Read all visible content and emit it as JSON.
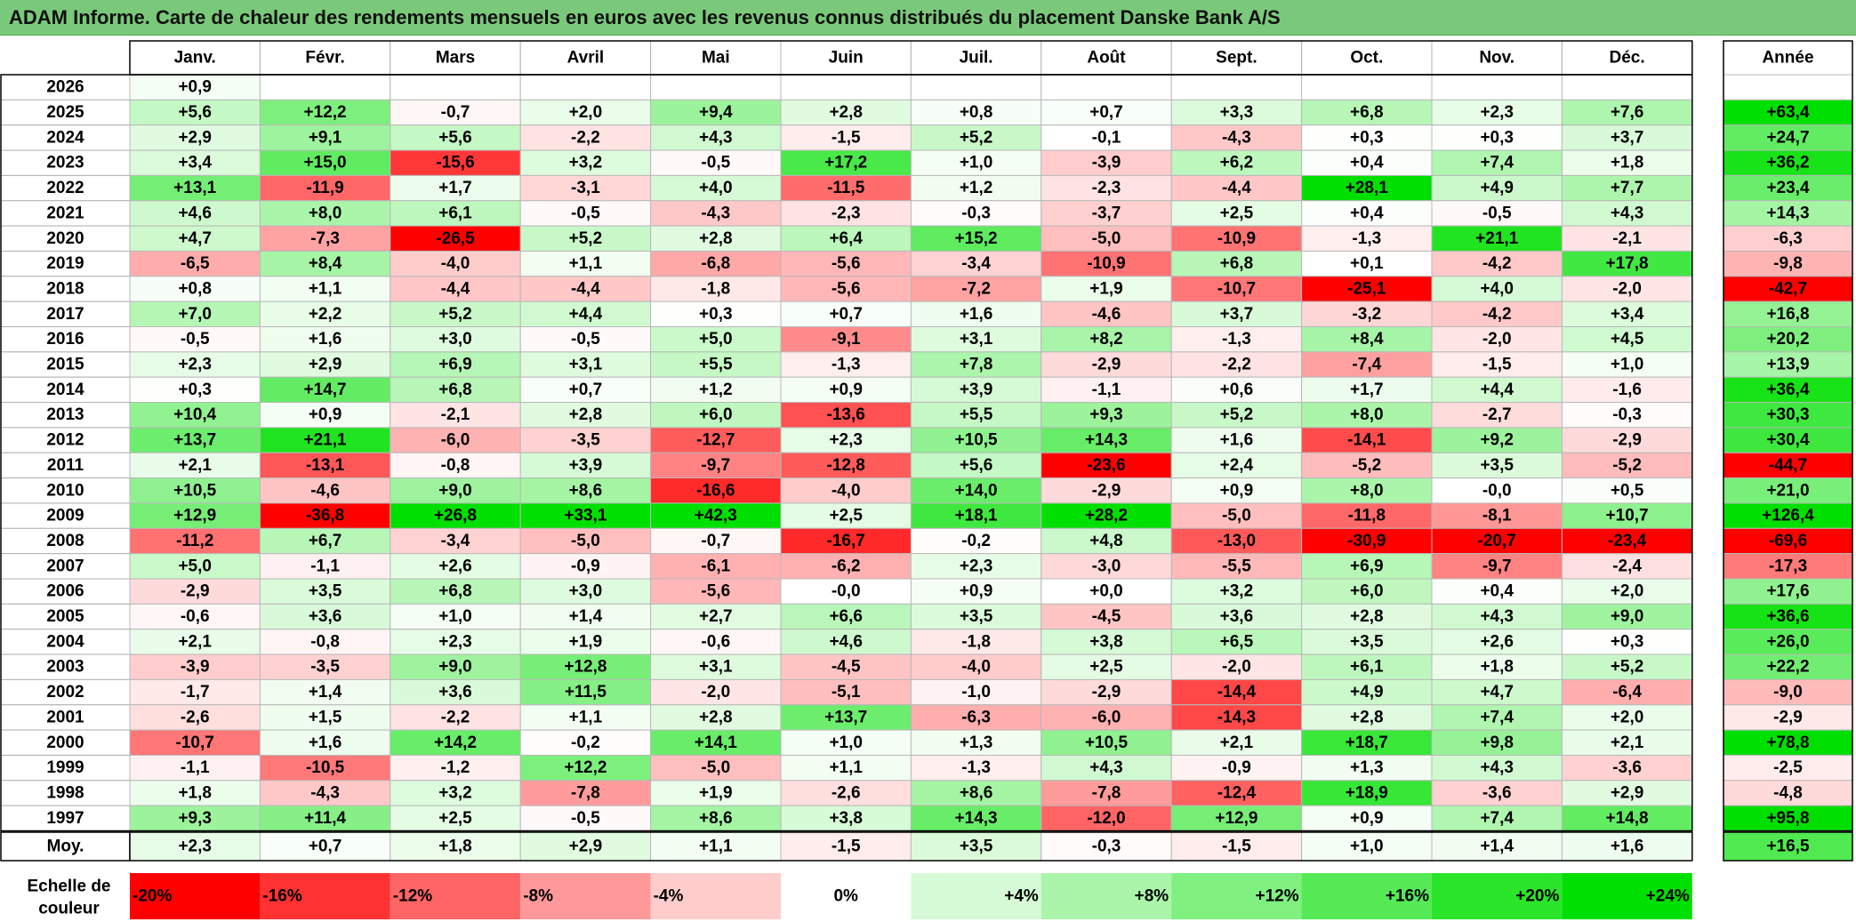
{
  "title": "ADAM Informe. Carte de chaleur des rendements mensuels en euros avec les revenus connus distribués du placement Danske Bank A/S",
  "chart_data": {
    "type": "heatmap",
    "title": "ADAM Informe. Carte de chaleur des rendements mensuels en euros avec les revenus connus distribués du placement Danske Bank A/S",
    "columns": [
      "Janv.",
      "Févr.",
      "Mars",
      "Avril",
      "Mai",
      "Juin",
      "Juil.",
      "Août",
      "Sept.",
      "Oct.",
      "Nov.",
      "Déc."
    ],
    "year_column_label": "Année",
    "rows": [
      {
        "label": "2026",
        "values": [
          "+0,9",
          "",
          "",
          "",
          "",
          "",
          "",
          "",
          "",
          "",
          "",
          ""
        ],
        "annual": ""
      },
      {
        "label": "2025",
        "values": [
          "+5,6",
          "+12,2",
          "-0,7",
          "+2,0",
          "+9,4",
          "+2,8",
          "+0,8",
          "+0,7",
          "+3,3",
          "+6,8",
          "+2,3",
          "+7,6"
        ],
        "annual": "+63,4"
      },
      {
        "label": "2024",
        "values": [
          "+2,9",
          "+9,1",
          "+5,6",
          "-2,2",
          "+4,3",
          "-1,5",
          "+5,2",
          "-0,1",
          "-4,3",
          "+0,3",
          "+0,3",
          "+3,7"
        ],
        "annual": "+24,7"
      },
      {
        "label": "2023",
        "values": [
          "+3,4",
          "+15,0",
          "-15,6",
          "+3,2",
          "-0,5",
          "+17,2",
          "+1,0",
          "-3,9",
          "+6,2",
          "+0,4",
          "+7,4",
          "+1,8"
        ],
        "annual": "+36,2"
      },
      {
        "label": "2022",
        "values": [
          "+13,1",
          "-11,9",
          "+1,7",
          "-3,1",
          "+4,0",
          "-11,5",
          "+1,2",
          "-2,3",
          "-4,4",
          "+28,1",
          "+4,9",
          "+7,7"
        ],
        "annual": "+23,4"
      },
      {
        "label": "2021",
        "values": [
          "+4,6",
          "+8,0",
          "+6,1",
          "-0,5",
          "-4,3",
          "-2,3",
          "-0,3",
          "-3,7",
          "+2,5",
          "+0,4",
          "-0,5",
          "+4,3"
        ],
        "annual": "+14,3"
      },
      {
        "label": "2020",
        "values": [
          "+4,7",
          "-7,3",
          "-26,5",
          "+5,2",
          "+2,8",
          "+6,4",
          "+15,2",
          "-5,0",
          "-10,9",
          "-1,3",
          "+21,1",
          "-2,1"
        ],
        "annual": "-6,3"
      },
      {
        "label": "2019",
        "values": [
          "-6,5",
          "+8,4",
          "-4,0",
          "+1,1",
          "-6,8",
          "-5,6",
          "-3,4",
          "-10,9",
          "+6,8",
          "+0,1",
          "-4,2",
          "+17,8"
        ],
        "annual": "-9,8"
      },
      {
        "label": "2018",
        "values": [
          "+0,8",
          "+1,1",
          "-4,4",
          "-4,4",
          "-1,8",
          "-5,6",
          "-7,2",
          "+1,9",
          "-10,7",
          "-25,1",
          "+4,0",
          "-2,0"
        ],
        "annual": "-42,7"
      },
      {
        "label": "2017",
        "values": [
          "+7,0",
          "+2,2",
          "+5,2",
          "+4,4",
          "+0,3",
          "+0,7",
          "+1,6",
          "-4,6",
          "+3,7",
          "-3,2",
          "-4,2",
          "+3,4"
        ],
        "annual": "+16,8"
      },
      {
        "label": "2016",
        "values": [
          "-0,5",
          "+1,6",
          "+3,0",
          "-0,5",
          "+5,0",
          "-9,1",
          "+3,1",
          "+8,2",
          "-1,3",
          "+8,4",
          "-2,0",
          "+4,5"
        ],
        "annual": "+20,2"
      },
      {
        "label": "2015",
        "values": [
          "+2,3",
          "+2,9",
          "+6,9",
          "+3,1",
          "+5,5",
          "-1,3",
          "+7,8",
          "-2,9",
          "-2,2",
          "-7,4",
          "-1,5",
          "+1,0"
        ],
        "annual": "+13,9"
      },
      {
        "label": "2014",
        "values": [
          "+0,3",
          "+14,7",
          "+6,8",
          "+0,7",
          "+1,2",
          "+0,9",
          "+3,9",
          "-1,1",
          "+0,6",
          "+1,7",
          "+4,4",
          "-1,6"
        ],
        "annual": "+36,4"
      },
      {
        "label": "2013",
        "values": [
          "+10,4",
          "+0,9",
          "-2,1",
          "+2,8",
          "+6,0",
          "-13,6",
          "+5,5",
          "+9,3",
          "+5,2",
          "+8,0",
          "-2,7",
          "-0,3"
        ],
        "annual": "+30,3"
      },
      {
        "label": "2012",
        "values": [
          "+13,7",
          "+21,1",
          "-6,0",
          "-3,5",
          "-12,7",
          "+2,3",
          "+10,5",
          "+14,3",
          "+1,6",
          "-14,1",
          "+9,2",
          "-2,9"
        ],
        "annual": "+30,4"
      },
      {
        "label": "2011",
        "values": [
          "+2,1",
          "-13,1",
          "-0,8",
          "+3,9",
          "-9,7",
          "-12,8",
          "+5,6",
          "-23,6",
          "+2,4",
          "-5,2",
          "+3,5",
          "-5,2"
        ],
        "annual": "-44,7"
      },
      {
        "label": "2010",
        "values": [
          "+10,5",
          "-4,6",
          "+9,0",
          "+8,6",
          "-16,6",
          "-4,0",
          "+14,0",
          "-2,9",
          "+0,9",
          "+8,0",
          "-0,0",
          "+0,5"
        ],
        "annual": "+21,0"
      },
      {
        "label": "2009",
        "values": [
          "+12,9",
          "-36,8",
          "+26,8",
          "+33,1",
          "+42,3",
          "+2,5",
          "+18,1",
          "+28,2",
          "-5,0",
          "-11,8",
          "-8,1",
          "+10,7"
        ],
        "annual": "+126,4"
      },
      {
        "label": "2008",
        "values": [
          "-11,2",
          "+6,7",
          "-3,4",
          "-5,0",
          "-0,7",
          "-16,7",
          "-0,2",
          "+4,8",
          "-13,0",
          "-30,9",
          "-20,7",
          "-23,4"
        ],
        "annual": "-69,6"
      },
      {
        "label": "2007",
        "values": [
          "+5,0",
          "-1,1",
          "+2,6",
          "-0,9",
          "-6,1",
          "-6,2",
          "+2,3",
          "-3,0",
          "-5,5",
          "+6,9",
          "-9,7",
          "-2,4"
        ],
        "annual": "-17,3"
      },
      {
        "label": "2006",
        "values": [
          "-2,9",
          "+3,5",
          "+6,8",
          "+3,0",
          "-5,6",
          "-0,0",
          "+0,9",
          "+0,0",
          "+3,2",
          "+6,0",
          "+0,4",
          "+2,0"
        ],
        "annual": "+17,6"
      },
      {
        "label": "2005",
        "values": [
          "-0,6",
          "+3,6",
          "+1,0",
          "+1,4",
          "+2,7",
          "+6,6",
          "+3,5",
          "-4,5",
          "+3,6",
          "+2,8",
          "+4,3",
          "+9,0"
        ],
        "annual": "+36,6"
      },
      {
        "label": "2004",
        "values": [
          "+2,1",
          "-0,8",
          "+2,3",
          "+1,9",
          "-0,6",
          "+4,6",
          "-1,8",
          "+3,8",
          "+6,5",
          "+3,5",
          "+2,6",
          "+0,3"
        ],
        "annual": "+26,0"
      },
      {
        "label": "2003",
        "values": [
          "-3,9",
          "-3,5",
          "+9,0",
          "+12,8",
          "+3,1",
          "-4,5",
          "-4,0",
          "+2,5",
          "-2,0",
          "+6,1",
          "+1,8",
          "+5,2"
        ],
        "annual": "+22,2"
      },
      {
        "label": "2002",
        "values": [
          "-1,7",
          "+1,4",
          "+3,6",
          "+11,5",
          "-2,0",
          "-5,1",
          "-1,0",
          "-2,9",
          "-14,4",
          "+4,9",
          "+4,7",
          "-6,4"
        ],
        "annual": "-9,0"
      },
      {
        "label": "2001",
        "values": [
          "-2,6",
          "+1,5",
          "-2,2",
          "+1,1",
          "+2,8",
          "+13,7",
          "-6,3",
          "-6,0",
          "-14,3",
          "+2,8",
          "+7,4",
          "+2,0"
        ],
        "annual": "-2,9"
      },
      {
        "label": "2000",
        "values": [
          "-10,7",
          "+1,6",
          "+14,2",
          "-0,2",
          "+14,1",
          "+1,0",
          "+1,3",
          "+10,5",
          "+2,1",
          "+18,7",
          "+9,8",
          "+2,1"
        ],
        "annual": "+78,8"
      },
      {
        "label": "1999",
        "values": [
          "-1,1",
          "-10,5",
          "-1,2",
          "+12,2",
          "-5,0",
          "+1,1",
          "-1,3",
          "+4,3",
          "-0,9",
          "+1,3",
          "+4,3",
          "-3,6"
        ],
        "annual": "-2,5"
      },
      {
        "label": "1998",
        "values": [
          "+1,8",
          "-4,3",
          "+3,2",
          "-7,8",
          "+1,9",
          "-2,6",
          "+8,6",
          "-7,8",
          "-12,4",
          "+18,9",
          "-3,6",
          "+2,9"
        ],
        "annual": "-4,8"
      },
      {
        "label": "1997",
        "values": [
          "+9,3",
          "+11,4",
          "+2,5",
          "-0,5",
          "+8,6",
          "+3,8",
          "+14,3",
          "-12,0",
          "+12,9",
          "+0,9",
          "+7,4",
          "+14,8"
        ],
        "annual": "+95,8"
      }
    ],
    "average_row": {
      "label": "Moy.",
      "values": [
        "+2,3",
        "+0,7",
        "+1,8",
        "+2,9",
        "+1,1",
        "-1,5",
        "+3,5",
        "-0,3",
        "-1,5",
        "+1,0",
        "+1,4",
        "+1,6"
      ],
      "annual": "+16,5"
    },
    "color_scale": {
      "label": "Echelle de couleur",
      "steps": [
        "-20%",
        "-16%",
        "-12%",
        "-8%",
        "-4%",
        "0%",
        "+4%",
        "+8%",
        "+12%",
        "+16%",
        "+20%",
        "+24%"
      ],
      "step_values": [
        -20,
        -16,
        -12,
        -8,
        -4,
        0,
        4,
        8,
        12,
        16,
        20,
        24
      ]
    },
    "colors": {
      "negative_max": "#ff0000",
      "neutral": "#ffffff",
      "positive_max": "#00e000",
      "title_bar": "#7ac97a"
    }
  }
}
